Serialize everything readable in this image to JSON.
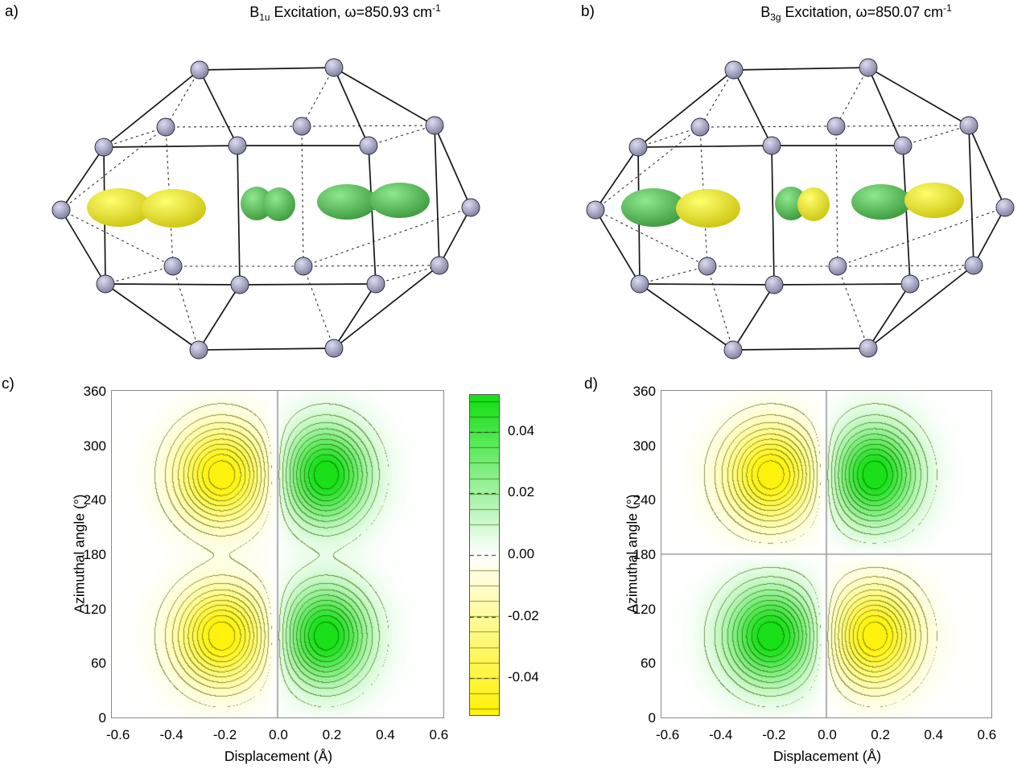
{
  "panels": {
    "a": {
      "label": "a)",
      "title": {
        "base": "B",
        "sub": "1u",
        "rest": " Excitation, ω=850.93 cm",
        "sup": "-1"
      },
      "dumbbells": [
        [
          "yellow",
          "yellow"
        ],
        [
          "green",
          "green"
        ],
        [
          "green",
          "green"
        ]
      ]
    },
    "b": {
      "label": "b)",
      "title": {
        "base": "B",
        "sub": "3g",
        "rest": " Excitation, ω=850.07 cm",
        "sup": "-1"
      },
      "dumbbells": [
        [
          "green",
          "yellow"
        ],
        [
          "green",
          "yellow"
        ],
        [
          "green",
          "yellow"
        ]
      ]
    },
    "c": {
      "label": "c)"
    },
    "d": {
      "label": "d)"
    }
  },
  "colors": {
    "atom": "#8080a4",
    "lobe_yellow": "#e2d800",
    "lobe_green": "#3da03d",
    "contour_positive": "#00dc00",
    "contour_negative": "#fff000"
  },
  "colorbar": {
    "ticks": [
      "0.04",
      "0.02",
      "0.00",
      "-0.02",
      "-0.04"
    ],
    "tick_values": [
      0.04,
      0.02,
      0.0,
      -0.02,
      -0.04
    ],
    "range": [
      -0.052,
      0.052
    ]
  },
  "chart_data": [
    {
      "type": "contour",
      "panel": "c",
      "xlabel": "Displacement (Å)",
      "ylabel": "Azimuthal angle (°)",
      "xlim": [
        -0.62,
        0.62
      ],
      "ylim": [
        0,
        360
      ],
      "xticks": [
        "-0.6",
        "-0.4",
        "-0.2",
        "0.0",
        "0.2",
        "0.4",
        "0.6"
      ],
      "xtick_values": [
        -0.6,
        -0.4,
        -0.2,
        0.0,
        0.2,
        0.4,
        0.6
      ],
      "yticks": [
        "360",
        "300",
        "240",
        "180",
        "120",
        "60",
        "0"
      ],
      "ytick_values": [
        360,
        300,
        240,
        180,
        120,
        60,
        0
      ],
      "level_step": 0.005,
      "vmax": 0.05,
      "crosshair": {
        "v": [
          0
        ],
        "h": []
      },
      "lobes": [
        {
          "x": -0.21,
          "y": 268,
          "amp": -0.055,
          "sx": 0.115,
          "sy": 36
        },
        {
          "x": 0.18,
          "y": 268,
          "amp": 0.055,
          "sx": 0.108,
          "sy": 36
        },
        {
          "x": -0.21,
          "y": 90,
          "amp": -0.055,
          "sx": 0.115,
          "sy": 36
        },
        {
          "x": 0.18,
          "y": 90,
          "amp": 0.055,
          "sx": 0.108,
          "sy": 36
        }
      ]
    },
    {
      "type": "contour",
      "panel": "d",
      "xlabel": "Displacement (Å)",
      "ylabel": "Azimuthal angle (°)",
      "xlim": [
        -0.62,
        0.62
      ],
      "ylim": [
        0,
        360
      ],
      "xticks": [
        "-0.6",
        "-0.4",
        "-0.2",
        "0.0",
        "0.2",
        "0.4",
        "0.6"
      ],
      "xtick_values": [
        -0.6,
        -0.4,
        -0.2,
        0.0,
        0.2,
        0.4,
        0.6
      ],
      "yticks": [
        "360",
        "300",
        "240",
        "180",
        "120",
        "60",
        "0"
      ],
      "ytick_values": [
        360,
        300,
        240,
        180,
        120,
        60,
        0
      ],
      "level_step": 0.005,
      "vmax": 0.05,
      "crosshair": {
        "v": [
          0
        ],
        "h": [
          180
        ]
      },
      "lobes": [
        {
          "x": -0.21,
          "y": 268,
          "amp": -0.055,
          "sx": 0.115,
          "sy": 36
        },
        {
          "x": 0.18,
          "y": 268,
          "amp": 0.055,
          "sx": 0.108,
          "sy": 36
        },
        {
          "x": -0.21,
          "y": 90,
          "amp": 0.055,
          "sx": 0.115,
          "sy": 36
        },
        {
          "x": 0.18,
          "y": 90,
          "amp": -0.055,
          "sx": 0.108,
          "sy": 36
        }
      ]
    }
  ]
}
